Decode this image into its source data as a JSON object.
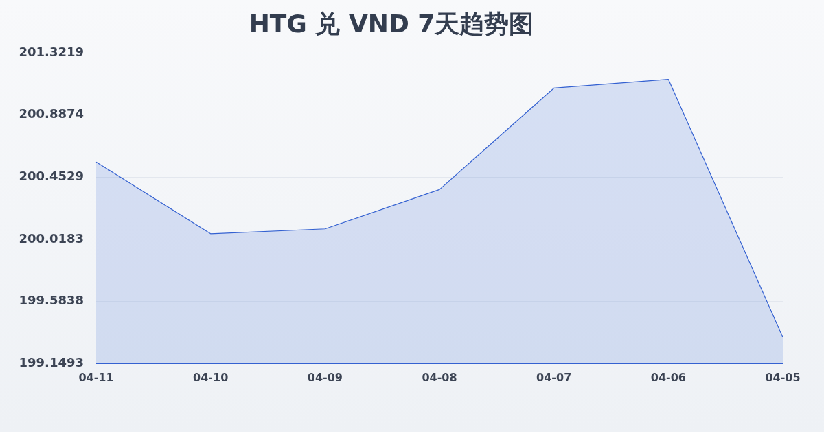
{
  "chart_data": {
    "type": "area",
    "title": "HTG 兑 VND 7天趋势图",
    "categories": [
      "04-11",
      "04-10",
      "04-09",
      "04-08",
      "04-07",
      "04-06",
      "04-05"
    ],
    "series": [
      {
        "color": "#3461d1",
        "values": [
          200.559,
          200.057,
          200.091,
          200.366,
          201.076,
          201.138,
          199.333
        ]
      }
    ],
    "ylim": [
      199.1493,
      201.3219
    ],
    "yticks": [
      199.1493,
      199.5838,
      200.0183,
      200.4529,
      200.8874,
      201.3219
    ],
    "grid": "y",
    "legend": false,
    "marker": "none",
    "line_style": "solid"
  }
}
